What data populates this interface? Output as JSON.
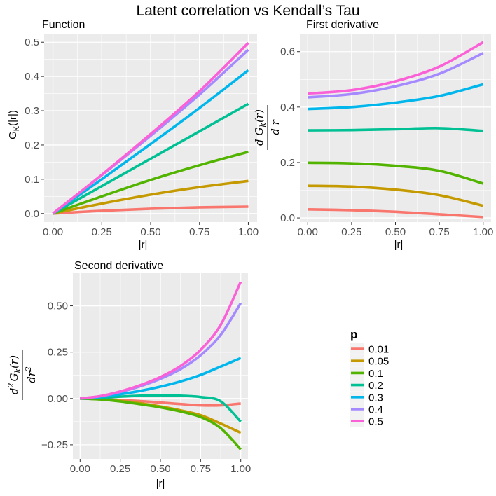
{
  "figure": {
    "title": "Latent correlation vs Kendall’s Tau"
  },
  "legend": {
    "title": "p",
    "colors": [
      "#F8766D",
      "#C49A00",
      "#53B400",
      "#00C094",
      "#00B6EB",
      "#A58AFF",
      "#FB61D7"
    ]
  },
  "panels": {
    "fn": {
      "title": "Function",
      "xlabel": "|r|",
      "ylabel_main": "G",
      "ylabel_sub": "K",
      "ylabel_rest": "(|r|)"
    },
    "d1": {
      "title": "First derivative",
      "xlabel": "|r|",
      "ylabel_num": "d G",
      "ylabel_num_sub": "k",
      "ylabel_num_rest": "(r)",
      "ylabel_den": "d r"
    },
    "d2": {
      "title": "Second derivative",
      "xlabel": "|r|",
      "ylabel_num_pre": "d",
      "ylabel_num_sup": "2",
      "ylabel_num_g": "G",
      "ylabel_num_sub": "k",
      "ylabel_num_rest": "(r)",
      "ylabel_den": "dr",
      "ylabel_den_sup": "2"
    }
  },
  "chart_data": [
    {
      "type": "line",
      "id": "fn",
      "title": "Function",
      "xlabel": "|r|",
      "ylabel": "G_K(|r|)",
      "xlim": [
        0,
        1
      ],
      "ylim": [
        -0.025,
        0.525
      ],
      "xticks": [
        "0.00",
        "0.25",
        "0.50",
        "0.75",
        "1.00"
      ],
      "yticks": [
        "0.0",
        "0.1",
        "0.2",
        "0.3",
        "0.4",
        "0.5"
      ],
      "x": [
        0,
        0.25,
        0.5,
        0.75,
        1.0
      ],
      "series": [
        {
          "name": "0.01",
          "values": [
            0,
            0.008,
            0.014,
            0.018,
            0.02
          ]
        },
        {
          "name": "0.05",
          "values": [
            0,
            0.029,
            0.055,
            0.077,
            0.095
          ]
        },
        {
          "name": "0.1",
          "values": [
            0,
            0.05,
            0.098,
            0.141,
            0.18
          ]
        },
        {
          "name": "0.2",
          "values": [
            0,
            0.08,
            0.16,
            0.24,
            0.32
          ]
        },
        {
          "name": "0.3",
          "values": [
            0,
            0.1,
            0.203,
            0.308,
            0.418
          ]
        },
        {
          "name": "0.4",
          "values": [
            0,
            0.112,
            0.227,
            0.347,
            0.478
          ]
        },
        {
          "name": "0.5",
          "values": [
            0,
            0.113,
            0.232,
            0.357,
            0.498
          ]
        }
      ]
    },
    {
      "type": "line",
      "id": "d1",
      "title": "First derivative",
      "xlabel": "|r|",
      "ylabel": "dG_k(r)/dr",
      "xlim": [
        0,
        1
      ],
      "ylim": [
        -0.015,
        0.665
      ],
      "xticks": [
        "0.00",
        "0.25",
        "0.50",
        "0.75",
        "1.00"
      ],
      "yticks": [
        "0.0",
        "0.2",
        "0.4",
        "0.6"
      ],
      "x": [
        0,
        0.25,
        0.5,
        0.75,
        1.0
      ],
      "series": [
        {
          "name": "0.01",
          "values": [
            0.031,
            0.028,
            0.022,
            0.013,
            0.003
          ]
        },
        {
          "name": "0.05",
          "values": [
            0.116,
            0.113,
            0.102,
            0.082,
            0.044
          ]
        },
        {
          "name": "0.1",
          "values": [
            0.199,
            0.197,
            0.188,
            0.17,
            0.124
          ]
        },
        {
          "name": "0.2",
          "values": [
            0.316,
            0.317,
            0.32,
            0.324,
            0.314
          ]
        },
        {
          "name": "0.3",
          "values": [
            0.393,
            0.4,
            0.416,
            0.44,
            0.482
          ]
        },
        {
          "name": "0.4",
          "values": [
            0.435,
            0.447,
            0.475,
            0.52,
            0.595
          ]
        },
        {
          "name": "0.5",
          "values": [
            0.449,
            0.461,
            0.493,
            0.546,
            0.634
          ]
        }
      ]
    },
    {
      "type": "line",
      "id": "d2",
      "title": "Second derivative",
      "xlabel": "|r|",
      "ylabel": "d^2G_k(r)/dr^2",
      "xlim": [
        0,
        1
      ],
      "ylim": [
        -0.326,
        0.676
      ],
      "xticks": [
        "0.00",
        "0.25",
        "0.50",
        "0.75",
        "1.00"
      ],
      "yticks": [
        "−0.25",
        "0.00",
        "0.25",
        "0.50"
      ],
      "x": [
        0,
        0.125,
        0.25,
        0.375,
        0.5,
        0.625,
        0.75,
        0.875,
        1.0
      ],
      "series": [
        {
          "name": "0.01",
          "values": [
            0,
            -0.003,
            -0.008,
            -0.014,
            -0.022,
            -0.03,
            -0.037,
            -0.037,
            -0.027
          ]
        },
        {
          "name": "0.05",
          "values": [
            0,
            -0.004,
            -0.013,
            -0.026,
            -0.043,
            -0.064,
            -0.09,
            -0.135,
            -0.185
          ]
        },
        {
          "name": "0.1",
          "values": [
            0,
            -0.005,
            -0.016,
            -0.031,
            -0.048,
            -0.07,
            -0.1,
            -0.16,
            -0.275
          ]
        },
        {
          "name": "0.2",
          "values": [
            0,
            0.003,
            0.01,
            0.015,
            0.017,
            0.015,
            0.008,
            -0.015,
            -0.125
          ]
        },
        {
          "name": "0.3",
          "values": [
            0,
            0.008,
            0.023,
            0.041,
            0.064,
            0.092,
            0.127,
            0.172,
            0.218
          ]
        },
        {
          "name": "0.4",
          "values": [
            0,
            0.012,
            0.035,
            0.066,
            0.106,
            0.158,
            0.233,
            0.343,
            0.515
          ]
        },
        {
          "name": "0.5",
          "values": [
            0,
            0.013,
            0.038,
            0.072,
            0.116,
            0.175,
            0.262,
            0.397,
            0.63
          ]
        }
      ]
    }
  ]
}
